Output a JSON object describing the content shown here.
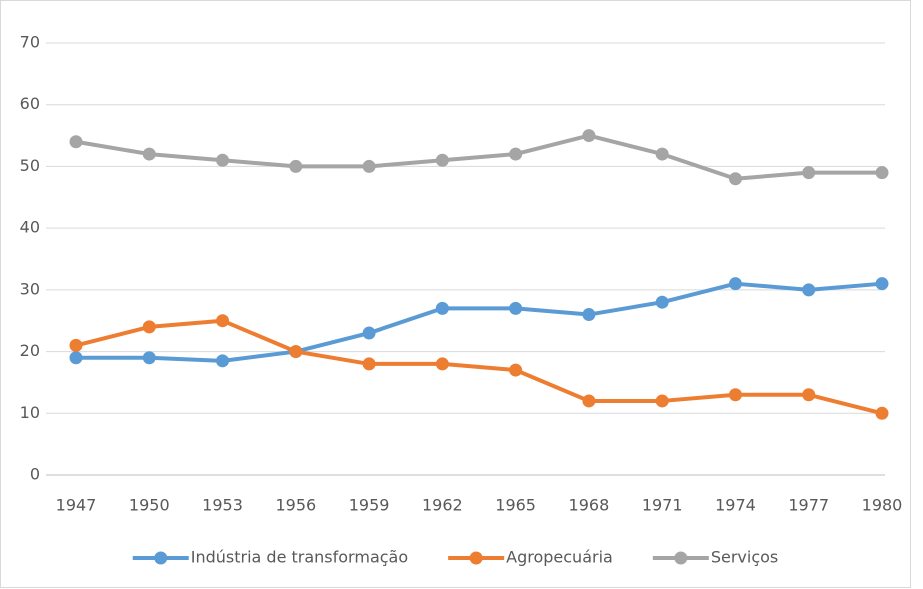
{
  "chart_data": {
    "type": "line",
    "x": [
      1947,
      1950,
      1953,
      1956,
      1959,
      1962,
      1965,
      1968,
      1971,
      1974,
      1977,
      1980
    ],
    "xlim": [
      1947,
      1980
    ],
    "xticks": [
      1947,
      1950,
      1953,
      1956,
      1959,
      1962,
      1965,
      1968,
      1971,
      1974,
      1977,
      1980
    ],
    "ylim": [
      0,
      70
    ],
    "yticks": [
      0,
      10,
      20,
      30,
      40,
      50,
      60,
      70
    ],
    "grid": true,
    "legend": "bottom",
    "series": [
      {
        "name": "Indústria de transformação",
        "color": "#5b9bd5",
        "values": [
          19,
          19,
          18.5,
          20,
          23,
          27,
          27,
          26,
          28,
          31,
          30,
          31
        ]
      },
      {
        "name": "Agropecuária",
        "color": "#ed7d31",
        "values": [
          21,
          24,
          25,
          20,
          18,
          18,
          17,
          12,
          12,
          13,
          13,
          10
        ]
      },
      {
        "name": "Serviços",
        "color": "#a5a5a5",
        "values": [
          54,
          52,
          51,
          50,
          50,
          51,
          52,
          55,
          52,
          48,
          49,
          49
        ]
      }
    ]
  }
}
